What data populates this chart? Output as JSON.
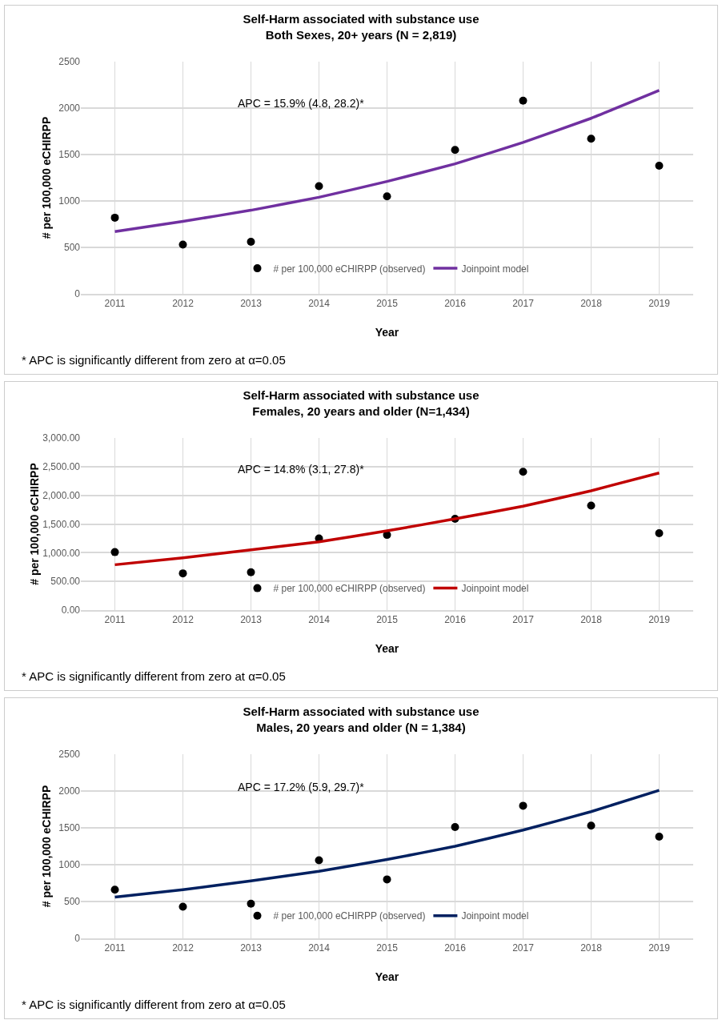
{
  "chart_data": [
    {
      "type": "line",
      "title": "Self-Harm associated with substance use",
      "subtitle": "Both Sexes, 20+ years (N = 2,819)",
      "xlabel": "Year",
      "ylabel": "# per 100,000 eCHIRPP",
      "categories": [
        "2011",
        "2012",
        "2013",
        "2014",
        "2015",
        "2016",
        "2017",
        "2018",
        "2019"
      ],
      "series": [
        {
          "name": "# per 100,000 eCHIRPP (observed)",
          "type": "scatter",
          "marker": "circle",
          "color": "#000000",
          "values": [
            820,
            530,
            560,
            1160,
            1050,
            1550,
            2080,
            1670,
            1380
          ]
        },
        {
          "name": "Joinpoint model",
          "color": "#7030a0",
          "values": [
            670,
            780,
            900,
            1040,
            1210,
            1400,
            1630,
            1890,
            2190
          ]
        }
      ],
      "ylim": [
        0,
        2500
      ],
      "yticks": [
        0,
        500,
        1000,
        1500,
        2000,
        2500
      ],
      "grid": true,
      "legend": "bottom",
      "annotations": [
        "APC = 15.9% (4.8, 28.2)*",
        "* APC is significantly different from zero at α=0.05"
      ]
    },
    {
      "type": "line",
      "title": "Self-Harm associated with substance use",
      "subtitle": "Females, 20 years and older (N=1,434)",
      "xlabel": "Year",
      "ylabel": "# per 100,000 eCHIRPP",
      "categories": [
        "2011",
        "2012",
        "2013",
        "2014",
        "2015",
        "2016",
        "2017",
        "2018",
        "2019"
      ],
      "series": [
        {
          "name": "# per 100,000 eCHIRPP (observed)",
          "type": "scatter",
          "marker": "circle",
          "color": "#000000",
          "values": [
            1010,
            640,
            660,
            1250,
            1310,
            1590,
            2410,
            1820,
            1340
          ]
        },
        {
          "name": "Joinpoint model",
          "color": "#c00000",
          "values": [
            790,
            910,
            1050,
            1190,
            1380,
            1590,
            1810,
            2080,
            2390
          ]
        }
      ],
      "ylim": [
        0,
        3000
      ],
      "yticks": [
        {
          "value": 0,
          "label": "0.00"
        },
        {
          "value": 500,
          "label": "500.00"
        },
        {
          "value": 1000,
          "label": "1,000.00"
        },
        {
          "value": 1500,
          "label": "1,500.00"
        },
        {
          "value": 2000,
          "label": "2,000.00"
        },
        {
          "value": 2500,
          "label": "2,500.00"
        },
        {
          "value": 3000,
          "label": "3,000.00"
        }
      ],
      "grid": true,
      "legend": "bottom",
      "annotations": [
        "APC = 14.8% (3.1, 27.8)*",
        "* APC is significantly different from zero at α=0.05"
      ]
    },
    {
      "type": "line",
      "title": "Self-Harm associated with substance use",
      "subtitle": "Males, 20 years and older (N = 1,384)",
      "xlabel": "Year",
      "ylabel": "# per 100,000 eCHIRPP",
      "categories": [
        "2011",
        "2012",
        "2013",
        "2014",
        "2015",
        "2016",
        "2017",
        "2018",
        "2019"
      ],
      "series": [
        {
          "name": "# per 100,000 eCHIRPP (observed)",
          "type": "scatter",
          "marker": "circle",
          "color": "#000000",
          "values": [
            660,
            430,
            470,
            1060,
            800,
            1510,
            1800,
            1530,
            1380
          ]
        },
        {
          "name": "Joinpoint model",
          "color": "#002060",
          "values": [
            560,
            660,
            780,
            910,
            1070,
            1250,
            1470,
            1720,
            2010
          ]
        }
      ],
      "ylim": [
        0,
        2500
      ],
      "yticks": [
        0,
        500,
        1000,
        1500,
        2000,
        2500
      ],
      "grid": true,
      "legend": "bottom",
      "annotations": [
        "APC = 17.2% (5.9, 29.7)*",
        "* APC is significantly different from zero at α=0.05"
      ]
    }
  ]
}
